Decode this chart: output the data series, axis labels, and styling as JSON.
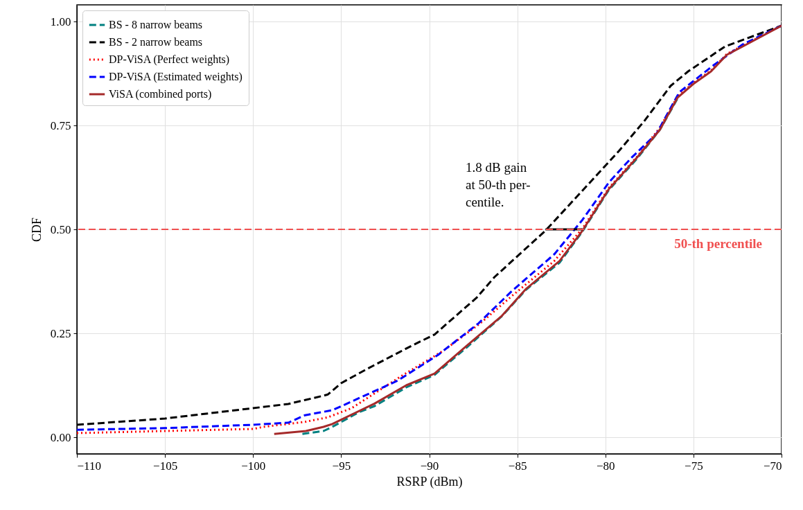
{
  "chart_data": {
    "type": "line",
    "xlabel": "RSRP (dBm)",
    "ylabel": "CDF",
    "xlim": [
      -110,
      -70
    ],
    "xticks": [
      {
        "value": -110,
        "label": "−110"
      },
      {
        "value": -105,
        "label": "−105"
      },
      {
        "value": -100,
        "label": "−100"
      },
      {
        "value": -95,
        "label": "−95"
      },
      {
        "value": -90,
        "label": "−90"
      },
      {
        "value": -85,
        "label": "−85"
      },
      {
        "value": -80,
        "label": "−80"
      },
      {
        "value": -75,
        "label": "−75"
      },
      {
        "value": -70,
        "label": "−70"
      }
    ],
    "ylim": [
      -0.04,
      1.04
    ],
    "yticks": [
      {
        "value": 0,
        "label": "0.00"
      },
      {
        "value": 0.25,
        "label": "0.25"
      },
      {
        "value": 0.5,
        "label": "0.50"
      },
      {
        "value": 0.75,
        "label": "0.75"
      },
      {
        "value": 1,
        "label": "1.00"
      }
    ],
    "grid": true,
    "legend": "top left",
    "series": [
      {
        "name": "BS - 8 narrow beams",
        "color": "#008080",
        "line_style": "dashed",
        "x": [
          -97.2,
          -96,
          -95.5,
          -94,
          -93.1,
          -91.3,
          -89.7,
          -87.9,
          -85.9,
          -84.5,
          -82.6,
          -81.3,
          -79.8,
          -78.2,
          -76.9,
          -75.9
        ],
        "values": [
          0.008,
          0.015,
          0.025,
          0.06,
          0.075,
          0.12,
          0.15,
          0.215,
          0.29,
          0.355,
          0.42,
          0.495,
          0.595,
          0.67,
          0.74,
          0.815
        ]
      },
      {
        "name": "BS - 2 narrow beams",
        "color": "#000000",
        "line_style": "dashed",
        "x": [
          -110,
          -105,
          -100,
          -98,
          -97,
          -96,
          -95.75,
          -95,
          -93.5,
          -91,
          -89.7,
          -87.3,
          -86.3,
          -83.4,
          -80.5,
          -79.2,
          -77.8,
          -76.3,
          -75.3,
          -73.2,
          -70
        ],
        "values": [
          0.03,
          0.045,
          0.07,
          0.08,
          0.09,
          0.1,
          0.103,
          0.13,
          0.165,
          0.22,
          0.247,
          0.336,
          0.385,
          0.497,
          0.63,
          0.69,
          0.76,
          0.845,
          0.88,
          0.94,
          0.99
        ]
      },
      {
        "name": "DP-ViSA (Perfect weights)",
        "color": "#ff0000",
        "line_style": "dotted",
        "x": [
          -110,
          -105,
          -100,
          -99.4,
          -97.05,
          -95.75,
          -94.4,
          -91.55,
          -89.2,
          -87.1,
          -85.3,
          -82.9,
          -81.3,
          -79.8,
          -78.2,
          -76.9,
          -75.9,
          -75,
          -74,
          -73.1,
          -72.2,
          -70
        ],
        "values": [
          0.01,
          0.015,
          0.02,
          0.025,
          0.037,
          0.048,
          0.07,
          0.148,
          0.208,
          0.274,
          0.34,
          0.424,
          0.502,
          0.6,
          0.675,
          0.745,
          0.82,
          0.852,
          0.882,
          0.922,
          0.942,
          0.99
        ]
      },
      {
        "name": "DP-ViSA (Estimated weights)",
        "color": "#0000ff",
        "line_style": "dashed",
        "x": [
          -110,
          -105,
          -100,
          -98,
          -97.05,
          -95.5,
          -94.4,
          -91.8,
          -89.5,
          -87.2,
          -85.3,
          -82.9,
          -81.3,
          -79.8,
          -78.5,
          -77.1,
          -75.8,
          -73.85,
          -72.2,
          -70
        ],
        "values": [
          0.018,
          0.022,
          0.03,
          0.035,
          0.053,
          0.065,
          0.086,
          0.136,
          0.198,
          0.274,
          0.352,
          0.44,
          0.523,
          0.613,
          0.673,
          0.73,
          0.83,
          0.895,
          0.945,
          0.99
        ]
      },
      {
        "name": "ViSA (combined ports)",
        "color": "#a52a2a",
        "line_style": "solid",
        "x": [
          -98.8,
          -97,
          -96,
          -95.5,
          -93.1,
          -91.3,
          -89.7,
          -87.9,
          -85.9,
          -84.5,
          -82.6,
          -81.3,
          -79.8,
          -78.2,
          -76.9,
          -75.9,
          -75,
          -74,
          -73.1,
          -72.2,
          -70
        ],
        "values": [
          0.008,
          0.015,
          0.025,
          0.032,
          0.081,
          0.125,
          0.153,
          0.219,
          0.291,
          0.357,
          0.424,
          0.497,
          0.597,
          0.673,
          0.74,
          0.817,
          0.85,
          0.88,
          0.92,
          0.94,
          0.99
        ]
      },
      {
        "color": "#000000",
        "line_style": "solid",
        "x": [
          -83.4,
          -81.3
        ],
        "values": [
          0.5,
          0.5
        ]
      }
    ],
    "ref_lines": [
      {
        "axis": "y",
        "value": 0.5,
        "label": "50-th percentile",
        "color": "#f05050",
        "line_style": "dashed"
      }
    ],
    "annotations": [
      "1.8 dB gain\nat 50-th per-\ncentile."
    ]
  }
}
